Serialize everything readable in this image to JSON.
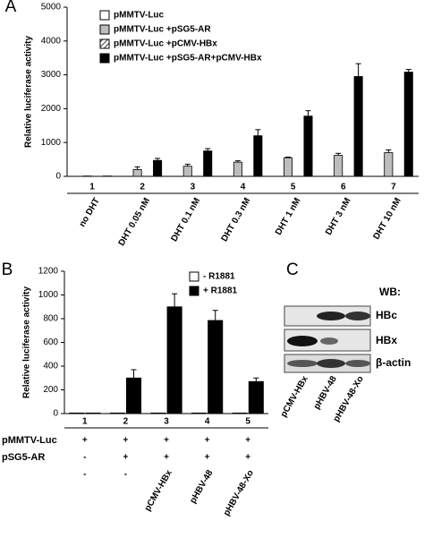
{
  "chart_data": [
    {
      "type": "bar",
      "panel_label": "A",
      "y_label": "Relative luciferase activity",
      "group_numbers": [
        "1",
        "2",
        "3",
        "4",
        "5",
        "6",
        "7"
      ],
      "categories": [
        "no DHT",
        "DHT 0.05 nM",
        "DHT 0.1 nM",
        "DHT 0.3 nM",
        "DHT 1 nM",
        "DHT 3 nM",
        "DHT 10 nM"
      ],
      "ylim": [
        0,
        5000
      ],
      "yticks": [
        0,
        1000,
        2000,
        3000,
        4000,
        5000
      ],
      "series": [
        {
          "name": "pMMTV-Luc",
          "color": "#ffffff",
          "values": [
            null,
            null,
            null,
            null,
            null,
            null,
            null
          ]
        },
        {
          "name": "pMMTV-Luc +pSG5-AR",
          "color": "#bdbdbd",
          "values": [
            10,
            200,
            300,
            420,
            550,
            620,
            700
          ],
          "errors": [
            null,
            80,
            60,
            40,
            20,
            60,
            80
          ]
        },
        {
          "name": "pMMTV-Luc +pCMV-HBx",
          "color": "#ffffff",
          "pattern": "hatch",
          "values": [
            null,
            null,
            null,
            null,
            null,
            null,
            null
          ]
        },
        {
          "name": "pMMTV-Luc +pSG5-AR+pCMV-HBx",
          "color": "#000000",
          "values": [
            10,
            470,
            750,
            1200,
            1780,
            2950,
            3080
          ],
          "errors": [
            null,
            60,
            70,
            180,
            160,
            380,
            80
          ]
        }
      ]
    },
    {
      "type": "bar",
      "panel_label": "B",
      "y_label": "Relative luciferase activity",
      "categories": [
        "1",
        "2",
        "3",
        "4",
        "5"
      ],
      "ylim": [
        0,
        1200
      ],
      "yticks": [
        0,
        200,
        400,
        600,
        800,
        1000,
        1200
      ],
      "series": [
        {
          "name": "- R1881",
          "color": "#ffffff",
          "values": [
            5,
            5,
            5,
            5,
            5
          ]
        },
        {
          "name": "+ R1881",
          "color": "#000000",
          "values": [
            5,
            300,
            900,
            785,
            270
          ],
          "errors": [
            null,
            70,
            110,
            85,
            30
          ]
        }
      ],
      "conditions": [
        {
          "name": "pMMTV-Luc",
          "values": [
            "+",
            "+",
            "+",
            "+",
            "+"
          ]
        },
        {
          "name": "pSG5-AR",
          "values": [
            "-",
            "+",
            "+",
            "+",
            "+"
          ]
        },
        {
          "values": [
            "-",
            "-",
            "pCMV-HBx",
            "pHBV-48",
            "pHBV-48-Xo"
          ]
        }
      ]
    }
  ],
  "blot": {
    "panel_label": "C",
    "header": "WB:",
    "rows": [
      "HBc",
      "HBx",
      "β-actin"
    ],
    "lanes": [
      "pCMV-HBx",
      "pHBV-48",
      "pHBV-48-Xo"
    ]
  }
}
